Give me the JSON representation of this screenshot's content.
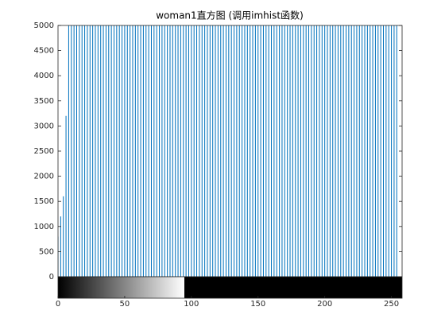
{
  "chart_data": {
    "type": "stem",
    "title": "woman1直方图 (调用imhist函数)",
    "color": "#0072bd",
    "xlim": [
      0,
      258
    ],
    "xticks": [
      0,
      50,
      100,
      150,
      200,
      250
    ],
    "ylim": [
      0,
      5000
    ],
    "yticks": [
      0,
      500,
      1000,
      1500,
      2000,
      2500,
      3000,
      3500,
      4000,
      4500,
      5000
    ],
    "values": [
      800,
      0,
      1200,
      0,
      1600,
      0,
      3200,
      0,
      5000,
      0,
      5000,
      0,
      5000,
      0,
      5000,
      0,
      5000,
      0,
      5000,
      0,
      5000,
      0,
      5000,
      0,
      5000,
      0,
      5000,
      0,
      5000,
      0,
      5000,
      0,
      5000,
      0,
      5000,
      0,
      5000,
      0,
      5000,
      0,
      5000,
      0,
      5000,
      0,
      5000,
      0,
      5000,
      0,
      5000,
      0,
      5000,
      0,
      5000,
      0,
      5000,
      0,
      5000,
      0,
      5000,
      0,
      5000,
      0,
      5000,
      0,
      5000,
      0,
      5000,
      0,
      5000,
      0,
      5000,
      0,
      5000,
      0,
      5000,
      0,
      5000,
      0,
      5000,
      0,
      5000,
      0,
      5000,
      0,
      5000,
      0,
      5000,
      0,
      5000,
      0,
      5000,
      0,
      5000,
      0,
      5000,
      0,
      5000,
      0,
      5000,
      0,
      5000,
      0,
      5000,
      0,
      5000,
      0,
      5000,
      0,
      5000,
      0,
      5000,
      0,
      5000,
      0,
      5000,
      0,
      5000,
      0,
      5000,
      0,
      5000,
      0,
      5000,
      0,
      5000,
      0,
      5000,
      0,
      5000,
      0,
      5000,
      0,
      5000,
      0,
      5000,
      0,
      5000,
      0,
      5000,
      0,
      5000,
      0,
      5000,
      0,
      5000,
      0,
      5000,
      0,
      5000,
      0,
      5000,
      0,
      5000,
      0,
      5000,
      0,
      5000,
      0,
      5000,
      0,
      5000,
      0,
      5000,
      0,
      5000,
      0,
      5000,
      0,
      5000,
      0,
      5000,
      0,
      5000,
      0,
      5000,
      0,
      5000,
      0,
      5000,
      0,
      5000,
      0,
      5000,
      0,
      5000,
      0,
      5000,
      0,
      5000,
      0,
      5000,
      0,
      5000,
      0,
      5000,
      0,
      5000,
      0,
      5000,
      0,
      5000,
      0,
      5000,
      0,
      5000,
      0,
      5000,
      0,
      5000,
      0,
      5000,
      0,
      5000,
      0,
      5000,
      0,
      5000,
      0,
      5000,
      0,
      5000,
      0,
      5000,
      0,
      5000,
      0,
      5000,
      0,
      5000,
      0,
      5000,
      0,
      5000,
      0,
      5000,
      0,
      5000,
      0,
      5000,
      0,
      5000,
      0,
      5000,
      0,
      5000,
      0,
      5000,
      0,
      5000,
      0,
      5000,
      0,
      5000,
      0,
      5000,
      0
    ]
  }
}
